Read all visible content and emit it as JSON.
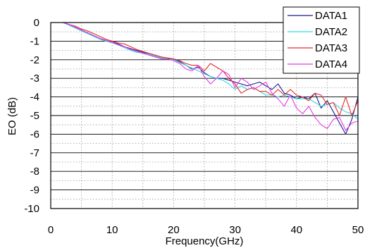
{
  "chart_data": {
    "type": "line",
    "xlabel": "Frequency(GHz)",
    "ylabel": "EO (dB)",
    "xlim": [
      0,
      50
    ],
    "ylim": [
      -10,
      0
    ],
    "x_ticks": [
      0,
      10,
      20,
      30,
      40,
      50
    ],
    "y_ticks": [
      0,
      -1,
      -2,
      -3,
      -4,
      -5,
      -6,
      -7,
      -8,
      -9,
      -10
    ],
    "grid": {
      "x_major": 5,
      "y_minor": 0.5,
      "y_major": 1
    },
    "legend_position": "top-right",
    "series": [
      {
        "name": "DATA1",
        "color": "#1a1a8c",
        "x": [
          2,
          3,
          4,
          5,
          6,
          7,
          8,
          9,
          10,
          11,
          12,
          13,
          14,
          15,
          16,
          17,
          18,
          19,
          20,
          21,
          22,
          23,
          24,
          25,
          26,
          27,
          28,
          29,
          30,
          31,
          32,
          33,
          34,
          35,
          36,
          37,
          38,
          39,
          40,
          41,
          42,
          43,
          44,
          45,
          46,
          47,
          48,
          49,
          50
        ],
        "y": [
          0,
          -0.1,
          -0.25,
          -0.4,
          -0.55,
          -0.7,
          -0.85,
          -1.0,
          -1.05,
          -1.15,
          -1.3,
          -1.4,
          -1.5,
          -1.6,
          -1.7,
          -1.8,
          -1.9,
          -1.95,
          -1.95,
          -2.1,
          -2.3,
          -2.5,
          -2.4,
          -2.7,
          -2.9,
          -3.0,
          -3.0,
          -3.1,
          -3.2,
          -3.3,
          -3.4,
          -3.3,
          -3.2,
          -3.4,
          -3.6,
          -3.3,
          -3.8,
          -3.9,
          -4.1,
          -4.0,
          -4.1,
          -3.8,
          -4.6,
          -4.2,
          -4.8,
          -5.4,
          -6.0,
          -5.2,
          -4.0
        ]
      },
      {
        "name": "DATA2",
        "color": "#33d6e6",
        "x": [
          2,
          3,
          4,
          5,
          6,
          7,
          8,
          9,
          10,
          11,
          12,
          13,
          14,
          15,
          16,
          17,
          18,
          19,
          20,
          21,
          22,
          23,
          24,
          25,
          26,
          27,
          28,
          29,
          30,
          31,
          32,
          33,
          34,
          35,
          36,
          37,
          38,
          39,
          40,
          41,
          42,
          43,
          44,
          45,
          46,
          47,
          48,
          49,
          50
        ],
        "y": [
          0,
          -0.15,
          -0.3,
          -0.45,
          -0.6,
          -0.75,
          -0.9,
          -1.0,
          -1.1,
          -1.2,
          -1.35,
          -1.5,
          -1.6,
          -1.65,
          -1.7,
          -1.8,
          -1.9,
          -1.95,
          -2.0,
          -2.15,
          -2.3,
          -2.45,
          -2.6,
          -2.75,
          -2.9,
          -3.0,
          -3.1,
          -3.3,
          -3.6,
          -3.4,
          -3.6,
          -3.5,
          -3.7,
          -3.9,
          -3.9,
          -4.0,
          -3.9,
          -4.0,
          -4.1,
          -4.1,
          -4.1,
          -4.3,
          -4.5,
          -4.4,
          -4.3,
          -4.6,
          -4.8,
          -4.9,
          -5.2
        ]
      },
      {
        "name": "DATA3",
        "color": "#e62a2a",
        "x": [
          2,
          3,
          4,
          5,
          6,
          7,
          8,
          9,
          10,
          11,
          12,
          13,
          14,
          15,
          16,
          17,
          18,
          19,
          20,
          21,
          22,
          23,
          24,
          25,
          26,
          27,
          28,
          29,
          30,
          31,
          32,
          33,
          34,
          35,
          36,
          37,
          38,
          39,
          40,
          41,
          42,
          43,
          44,
          45,
          46,
          47,
          48,
          49,
          50
        ],
        "y": [
          0,
          -0.1,
          -0.2,
          -0.35,
          -0.45,
          -0.6,
          -0.75,
          -0.9,
          -1.0,
          -1.1,
          -1.15,
          -1.3,
          -1.45,
          -1.55,
          -1.65,
          -1.75,
          -1.85,
          -1.9,
          -1.95,
          -2.05,
          -2.2,
          -2.3,
          -2.3,
          -2.6,
          -2.2,
          -2.4,
          -2.6,
          -3.0,
          -3.3,
          -3.8,
          -3.6,
          -3.5,
          -3.7,
          -3.7,
          -3.9,
          -3.6,
          -3.9,
          -3.6,
          -3.9,
          -4.0,
          -4.2,
          -3.8,
          -3.9,
          -4.4,
          -4.3,
          -5.0,
          -4.0,
          -5.0,
          -4.2
        ]
      },
      {
        "name": "DATA4",
        "color": "#e23be2",
        "x": [
          2,
          3,
          4,
          5,
          6,
          7,
          8,
          9,
          10,
          11,
          12,
          13,
          14,
          15,
          16,
          17,
          18,
          19,
          20,
          21,
          22,
          23,
          24,
          25,
          26,
          27,
          28,
          29,
          30,
          31,
          32,
          33,
          34,
          35,
          36,
          37,
          38,
          39,
          40,
          41,
          42,
          43,
          44,
          45,
          46,
          47,
          48,
          49,
          50
        ],
        "y": [
          0,
          -0.1,
          -0.25,
          -0.4,
          -0.55,
          -0.7,
          -0.85,
          -0.95,
          -1.05,
          -1.2,
          -1.3,
          -1.45,
          -1.55,
          -1.65,
          -1.75,
          -1.85,
          -1.95,
          -1.95,
          -2.05,
          -2.2,
          -2.5,
          -2.6,
          -2.3,
          -2.9,
          -3.3,
          -3.0,
          -2.6,
          -2.8,
          -3.5,
          -3.0,
          -3.2,
          -3.6,
          -3.4,
          -3.2,
          -3.8,
          -4.1,
          -4.5,
          -3.9,
          -4.6,
          -4.9,
          -4.5,
          -5.1,
          -5.5,
          -5.7,
          -5.2,
          -5.1,
          -5.8,
          -5.4,
          -5.3
        ]
      }
    ]
  }
}
